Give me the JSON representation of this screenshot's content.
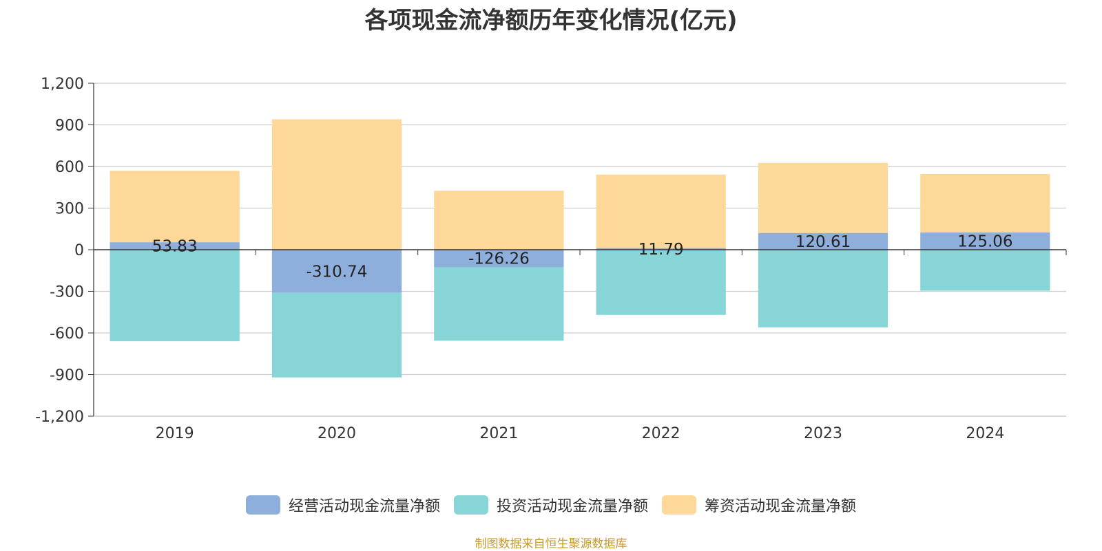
{
  "chart_data": {
    "type": "bar",
    "stacked": true,
    "title": "各项现金流净额历年变化情况(亿元)",
    "categories": [
      "2019",
      "2020",
      "2021",
      "2022",
      "2023",
      "2024"
    ],
    "ylim": [
      -1200,
      1200
    ],
    "yticks": [
      1200,
      900,
      600,
      300,
      0,
      -300,
      -600,
      -900,
      -1200
    ],
    "ytick_labels": [
      "1,200",
      "900",
      "600",
      "300",
      "0",
      "-300",
      "-600",
      "-900",
      "-1,200"
    ],
    "grid": true,
    "legend_position": "bottom",
    "series": [
      {
        "name": "经营活动现金流量净额",
        "color": "#8eaedb",
        "values": [
          53.83,
          -310.74,
          -126.26,
          11.79,
          120.61,
          125.06
        ],
        "labels": [
          "53.83",
          "-310.74",
          "-126.26",
          "11.79",
          "120.61",
          "125.06"
        ]
      },
      {
        "name": "投资活动现金流量净额",
        "color": "#88d5d8",
        "values": [
          -660,
          -610,
          -530,
          -470,
          -560,
          -295
        ]
      },
      {
        "name": "筹资活动现金流量净额",
        "color": "#fed899",
        "values": [
          515,
          940,
          425,
          530,
          505,
          420
        ]
      }
    ]
  },
  "footer": "制图数据来自恒生聚源数据库"
}
